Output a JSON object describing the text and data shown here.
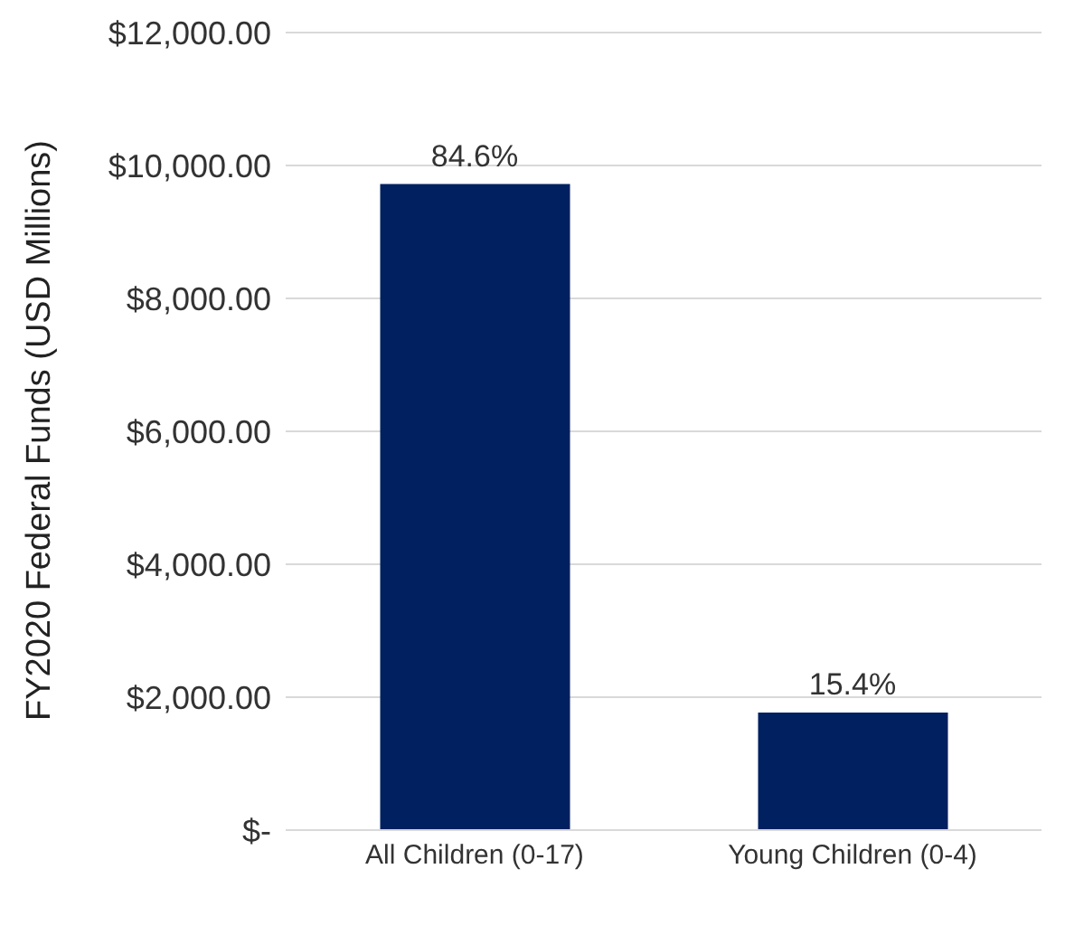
{
  "chart_data": {
    "type": "bar",
    "ylabel": "FY2020 Federal Funds (USD Millions)",
    "categories": [
      "All Children (0-17)",
      "Young Children (0-4)"
    ],
    "values": [
      9720,
      1770
    ],
    "annotations": [
      {
        "text": "84.6%",
        "x": "All Children (0-17)",
        "y": 9720
      },
      {
        "text": "15.4%",
        "x": "Young Children (0-4)",
        "y": 1770
      }
    ],
    "color": "#002060",
    "ylim": [
      0,
      12000
    ],
    "yticks": [
      {
        "value": 0,
        "label": "$-"
      },
      {
        "value": 2000,
        "label": "$2,000.00"
      },
      {
        "value": 4000,
        "label": "$4,000.00"
      },
      {
        "value": 6000,
        "label": "$6,000.00"
      },
      {
        "value": 8000,
        "label": "$8,000.00"
      },
      {
        "value": 10000,
        "label": "$10,000.00"
      },
      {
        "value": 12000,
        "label": "$12,000.00"
      }
    ],
    "grid": "y"
  }
}
